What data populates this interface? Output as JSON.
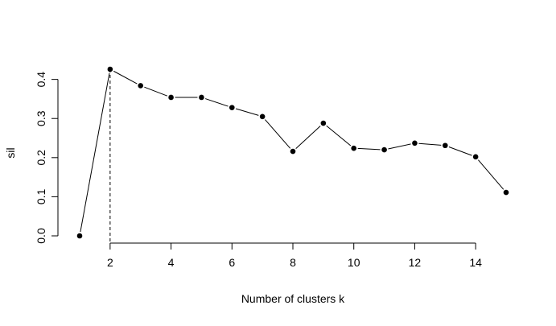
{
  "chart_data": {
    "type": "line",
    "title": "",
    "xlabel": "Number of clusters k",
    "ylabel": "sil",
    "x": [
      1,
      2,
      3,
      4,
      5,
      6,
      7,
      8,
      9,
      10,
      11,
      12,
      13,
      14,
      15
    ],
    "series": [
      {
        "values": [
          0.0,
          0.426,
          0.384,
          0.354,
          0.354,
          0.328,
          0.305,
          0.216,
          0.288,
          0.224,
          0.22,
          0.237,
          0.231,
          0.202,
          0.111
        ]
      }
    ],
    "xlim": [
      1,
      15
    ],
    "ylim": [
      0,
      0.426
    ],
    "x_ticks": [
      2,
      4,
      6,
      8,
      10,
      12,
      14
    ],
    "x_tick_labels": [
      "2",
      "4",
      "6",
      "8",
      "10",
      "12",
      "14"
    ],
    "y_ticks": [
      0.0,
      0.1,
      0.2,
      0.3,
      0.4
    ],
    "y_tick_labels": [
      "0.0",
      "0.1",
      "0.2",
      "0.3",
      "0.4"
    ],
    "optimal_k": 2,
    "grid": false,
    "legend": "none",
    "colors": {
      "line": "#000000",
      "points": "#000000",
      "background": "#ffffff"
    }
  }
}
